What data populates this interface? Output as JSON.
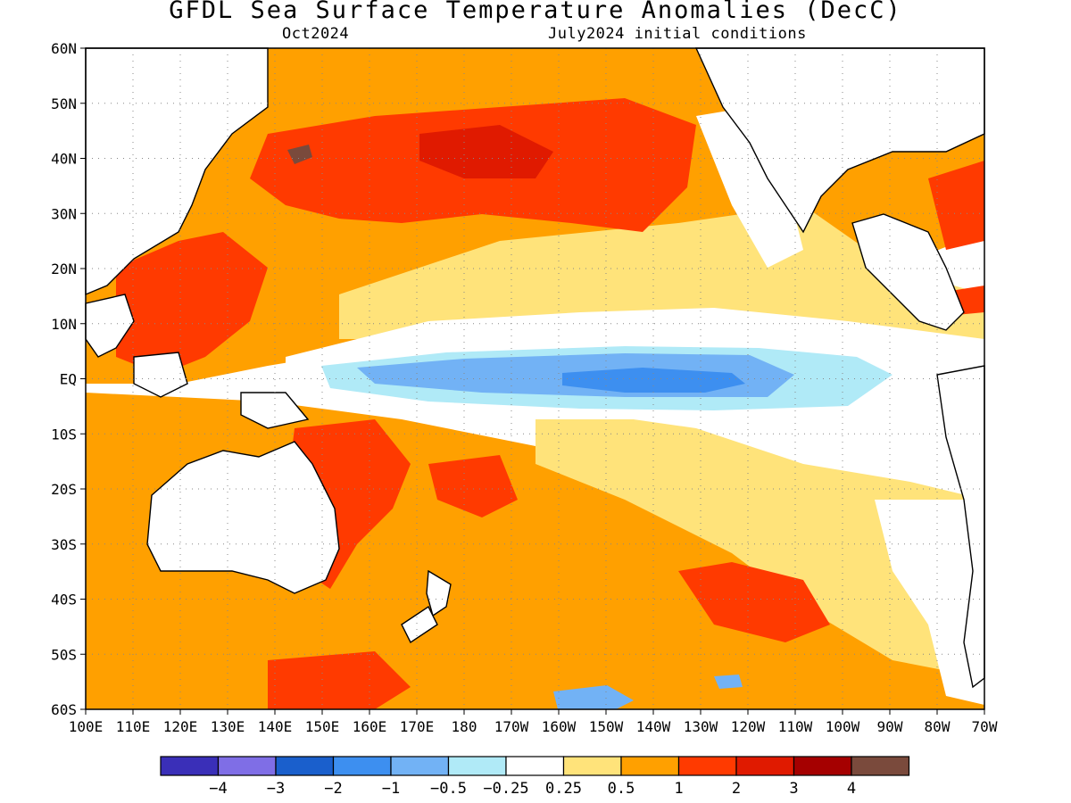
{
  "title": "GFDL Sea Surface Temperature Anomalies (DecC)",
  "valid_time": "Oct2024",
  "initial_conditions": "July2024 initial conditions",
  "lat_labels": [
    "60N",
    "50N",
    "40N",
    "30N",
    "20N",
    "10N",
    "EQ",
    "10S",
    "20S",
    "30S",
    "40S",
    "50S",
    "60S"
  ],
  "lon_labels": [
    "100E",
    "110E",
    "120E",
    "130E",
    "140E",
    "150E",
    "160E",
    "170E",
    "180",
    "170W",
    "160W",
    "150W",
    "140W",
    "130W",
    "120W",
    "110W",
    "100W",
    "90W",
    "80W",
    "70W"
  ],
  "colorbar": {
    "colors": [
      "#3a2fb8",
      "#7f6ee6",
      "#1a5fcc",
      "#3d8ff0",
      "#72b2f5",
      "#b0eaf7",
      "#ffffff",
      "#ffe37a",
      "#ffa000",
      "#ff3a00",
      "#e01a00",
      "#a50000",
      "#7a4a3c"
    ],
    "labels": [
      "−4",
      "−3",
      "−2",
      "−1",
      "−0.5",
      "−0.25",
      "0.25",
      "0.5",
      "1",
      "2",
      "3",
      "4"
    ]
  },
  "land_color": "#ffffff",
  "coastline_color": "#000000",
  "grid_style": "dotted"
}
